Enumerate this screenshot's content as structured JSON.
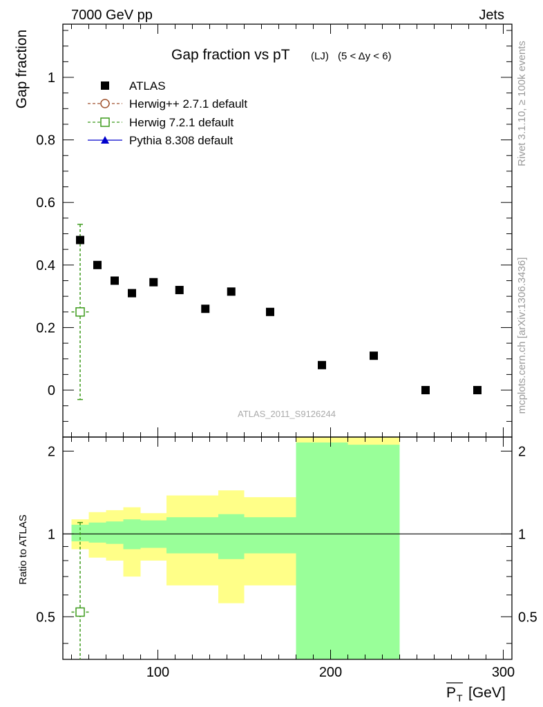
{
  "header": {
    "left": "7000 GeV pp",
    "right": "Jets",
    "side_top": "Rivet 3.1.10, ≥ 100k events",
    "side_bottom": "mcplots.cern.ch [arXiv:1306.3436]"
  },
  "chart_data": [
    {
      "type": "scatter",
      "title_main": "Gap fraction vs pT",
      "title_sub1": "(LJ)",
      "title_sub2": "(5 < Δy < 6)",
      "ylabel": "Gap fraction",
      "watermark": "ATLAS_2011_S9126244",
      "xlim": [
        45,
        305
      ],
      "ylim": [
        -0.15,
        1.17
      ],
      "y_ticks": [
        0,
        0.2,
        0.4,
        0.6,
        0.8,
        1
      ],
      "y_tick_labels": [
        "0",
        "0.2",
        "0.4",
        "0.6",
        "0.8",
        "1"
      ],
      "legend": [
        {
          "label": "ATLAS",
          "marker": "square-filled",
          "color": "#000000"
        },
        {
          "label": "Herwig++ 2.7.1 default",
          "marker": "circle-open",
          "color": "#a0522d"
        },
        {
          "label": "Herwig 7.2.1 default",
          "marker": "square-open",
          "color": "#3c9a1a"
        },
        {
          "label": "Pythia 8.308 default",
          "marker": "triangle-filled",
          "color": "#0000cc"
        }
      ],
      "series": [
        {
          "name": "ATLAS",
          "x": [
            55,
            65,
            75,
            85,
            97.5,
            112.5,
            127.5,
            142.5,
            165,
            195,
            225,
            255,
            285
          ],
          "y": [
            0.48,
            0.4,
            0.35,
            0.31,
            0.345,
            0.32,
            0.26,
            0.315,
            0.25,
            0.08,
            0.11,
            0.0,
            0.0
          ]
        },
        {
          "name": "Herwig 7.2.1 default",
          "x": [
            55
          ],
          "y": [
            0.25
          ],
          "x_err": [
            5
          ],
          "y_err_low": [
            0.28
          ],
          "y_err_high": [
            0.28
          ]
        }
      ]
    },
    {
      "type": "area",
      "ylabel": "Ratio to ATLAS",
      "xlabel_symbol": "P",
      "xlabel_sub": "T",
      "xlabel_unit": "[GeV]",
      "xlim": [
        45,
        305
      ],
      "ylim": [
        0.35,
        2.25
      ],
      "x_ticks": [
        100,
        200,
        300
      ],
      "x_tick_labels": [
        "100",
        "200",
        "300"
      ],
      "y_ticks": [
        0.5,
        1,
        2
      ],
      "y_tick_labels": [
        "0.5",
        "1",
        "2"
      ],
      "band_colors": {
        "outer": "#ffff88",
        "inner": "#99ff99"
      },
      "bands": [
        {
          "x0": 50,
          "x1": 60,
          "inner": [
            0.94,
            1.08
          ],
          "outer": [
            0.88,
            1.13
          ]
        },
        {
          "x0": 60,
          "x1": 70,
          "inner": [
            0.93,
            1.1
          ],
          "outer": [
            0.82,
            1.2
          ]
        },
        {
          "x0": 70,
          "x1": 80,
          "inner": [
            0.92,
            1.11
          ],
          "outer": [
            0.8,
            1.22
          ]
        },
        {
          "x0": 80,
          "x1": 90,
          "inner": [
            0.88,
            1.13
          ],
          "outer": [
            0.7,
            1.25
          ]
        },
        {
          "x0": 90,
          "x1": 105,
          "inner": [
            0.89,
            1.12
          ],
          "outer": [
            0.8,
            1.19
          ]
        },
        {
          "x0": 105,
          "x1": 120,
          "inner": [
            0.85,
            1.15
          ],
          "outer": [
            0.65,
            1.38
          ]
        },
        {
          "x0": 120,
          "x1": 135,
          "inner": [
            0.85,
            1.15
          ],
          "outer": [
            0.65,
            1.38
          ]
        },
        {
          "x0": 135,
          "x1": 150,
          "inner": [
            0.81,
            1.18
          ],
          "outer": [
            0.56,
            1.44
          ]
        },
        {
          "x0": 150,
          "x1": 180,
          "inner": [
            0.85,
            1.15
          ],
          "outer": [
            0.65,
            1.36
          ]
        },
        {
          "x0": 180,
          "x1": 210,
          "inner": [
            0.35,
            2.15
          ],
          "outer": [
            0.35,
            2.3
          ]
        },
        {
          "x0": 210,
          "x1": 240,
          "inner": [
            0.35,
            2.11
          ],
          "outer": [
            0.35,
            2.3
          ]
        }
      ],
      "reference_line": 1,
      "series": [
        {
          "name": "Herwig 7.2.1 default",
          "x": [
            55
          ],
          "y": [
            0.52
          ],
          "x_err": [
            5
          ],
          "y_err_high": [
            0.58
          ]
        }
      ]
    }
  ]
}
